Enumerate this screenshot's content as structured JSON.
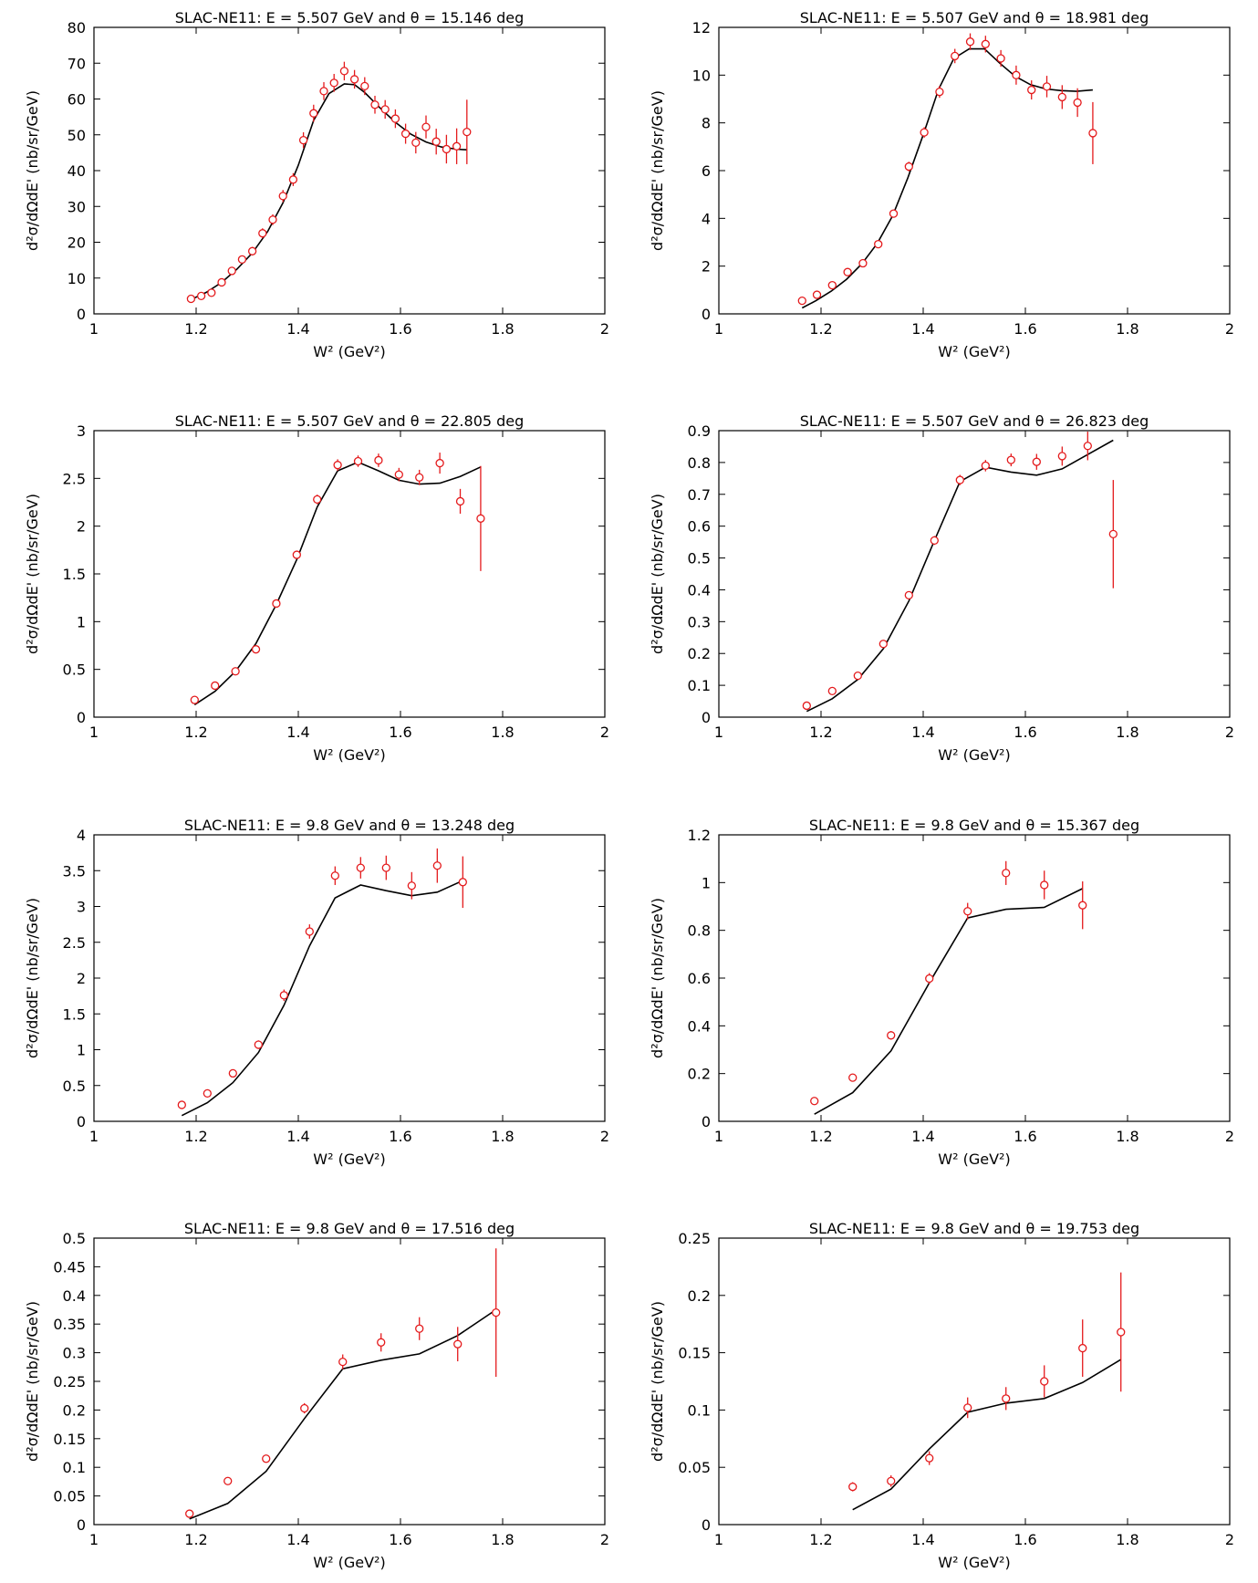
{
  "figure": {
    "ylabel_base": "d²σ/dΩdE'  (nb/sr/GeV)",
    "xlabel_base": "W²  (GeV²)"
  },
  "colors": {
    "data": "#e41a1c",
    "model": "#000000",
    "axis": "#000000"
  },
  "chart_data": [
    {
      "type": "scatter",
      "title": "SLAC-NE11: E = 5.507 GeV and θ = 15.146 deg",
      "xlabel": "W2 (GeV2)",
      "ylabel": "d2σ/dΩdE' (nb/sr/GeV)",
      "xlim": [
        1,
        2
      ],
      "ylim": [
        0,
        80
      ],
      "xticks": [
        "1",
        "1.2",
        "1.4",
        "1.6",
        "1.8",
        "2"
      ],
      "yticks": [
        "0",
        "10",
        "20",
        "30",
        "40",
        "50",
        "60",
        "70",
        "80"
      ],
      "series": [
        {
          "kind": "data",
          "x": [
            1.19,
            1.21,
            1.23,
            1.25,
            1.27,
            1.29,
            1.31,
            1.33,
            1.35,
            1.37,
            1.39,
            1.41,
            1.43,
            1.45,
            1.47,
            1.49,
            1.51,
            1.53,
            1.55,
            1.57,
            1.59,
            1.61,
            1.63,
            1.65,
            1.67,
            1.69,
            1.71,
            1.73
          ],
          "y": [
            4.2,
            5.0,
            5.9,
            8.8,
            12.0,
            15.2,
            17.5,
            22.5,
            26.3,
            32.9,
            37.5,
            48.5,
            56.0,
            62.2,
            64.5,
            67.8,
            65.5,
            63.6,
            58.4,
            57.1,
            54.5,
            50.3,
            47.8,
            52.2,
            48.1,
            46.0,
            46.8,
            50.8
          ],
          "err": [
            0.6,
            0.6,
            0.7,
            0.9,
            1.0,
            1.1,
            1.2,
            1.4,
            1.5,
            1.7,
            1.8,
            2.2,
            2.4,
            2.5,
            2.5,
            2.6,
            2.6,
            2.5,
            2.5,
            2.6,
            2.6,
            2.8,
            3.0,
            3.2,
            3.6,
            4.0,
            5.0,
            9.0
          ]
        },
        {
          "kind": "model",
          "x": [
            1.19,
            1.22,
            1.25,
            1.28,
            1.31,
            1.34,
            1.37,
            1.4,
            1.43,
            1.46,
            1.49,
            1.51,
            1.53,
            1.56,
            1.59,
            1.62,
            1.65,
            1.68,
            1.71,
            1.73
          ],
          "y": [
            4.0,
            6.0,
            8.8,
            12.5,
            17.0,
            23.0,
            31.0,
            41.5,
            54.0,
            61.5,
            64.2,
            64.0,
            61.8,
            57.5,
            53.5,
            50.2,
            48.0,
            46.6,
            46.0,
            45.8
          ]
        }
      ]
    },
    {
      "type": "scatter",
      "title": "SLAC-NE11: E = 5.507 GeV and θ = 18.981 deg",
      "xlabel": "W2 (GeV2)",
      "ylabel": "d2σ/dΩdE' (nb/sr/GeV)",
      "xlim": [
        1,
        2
      ],
      "ylim": [
        0,
        12
      ],
      "xticks": [
        "1",
        "1.2",
        "1.4",
        "1.6",
        "1.8",
        "2"
      ],
      "yticks": [
        "0",
        "2",
        "4",
        "6",
        "8",
        "10",
        "12"
      ],
      "series": [
        {
          "kind": "data",
          "x": [
            1.163,
            1.192,
            1.222,
            1.252,
            1.282,
            1.312,
            1.342,
            1.372,
            1.402,
            1.432,
            1.462,
            1.492,
            1.522,
            1.552,
            1.582,
            1.612,
            1.642,
            1.672,
            1.702,
            1.732
          ],
          "y": [
            0.55,
            0.8,
            1.2,
            1.75,
            2.12,
            2.92,
            4.2,
            6.17,
            7.6,
            9.3,
            10.8,
            11.4,
            11.3,
            10.7,
            10.0,
            9.38,
            9.52,
            9.08,
            8.85,
            7.57
          ],
          "err": [
            0.05,
            0.06,
            0.08,
            0.09,
            0.1,
            0.12,
            0.15,
            0.2,
            0.22,
            0.25,
            0.3,
            0.35,
            0.35,
            0.35,
            0.4,
            0.4,
            0.45,
            0.5,
            0.6,
            1.3
          ]
        },
        {
          "kind": "model",
          "x": [
            1.163,
            1.19,
            1.22,
            1.25,
            1.28,
            1.31,
            1.34,
            1.37,
            1.4,
            1.43,
            1.46,
            1.49,
            1.52,
            1.55,
            1.58,
            1.61,
            1.64,
            1.67,
            1.7,
            1.732
          ],
          "y": [
            0.25,
            0.55,
            0.95,
            1.45,
            2.1,
            2.95,
            4.1,
            5.7,
            7.5,
            9.4,
            10.7,
            11.1,
            11.1,
            10.5,
            9.95,
            9.6,
            9.42,
            9.35,
            9.32,
            9.38
          ]
        }
      ]
    },
    {
      "type": "scatter",
      "title": "SLAC-NE11: E = 5.507 GeV and θ = 22.805 deg",
      "xlabel": "W2 (GeV2)",
      "ylabel": "d2σ/dΩdE' (nb/sr/GeV)",
      "xlim": [
        1,
        2
      ],
      "ylim": [
        0,
        3
      ],
      "xticks": [
        "1",
        "1.2",
        "1.4",
        "1.6",
        "1.8",
        "2"
      ],
      "yticks": [
        "0",
        "0.5",
        "1",
        "1.5",
        "2",
        "2.5",
        "3"
      ],
      "series": [
        {
          "kind": "data",
          "x": [
            1.197,
            1.237,
            1.277,
            1.317,
            1.357,
            1.397,
            1.437,
            1.477,
            1.517,
            1.557,
            1.597,
            1.637,
            1.677,
            1.717,
            1.757
          ],
          "y": [
            0.18,
            0.33,
            0.48,
            0.71,
            1.19,
            1.7,
            2.28,
            2.64,
            2.68,
            2.69,
            2.54,
            2.51,
            2.66,
            2.26,
            2.08
          ],
          "err": [
            0.02,
            0.02,
            0.03,
            0.03,
            0.04,
            0.04,
            0.05,
            0.06,
            0.06,
            0.07,
            0.07,
            0.08,
            0.11,
            0.13,
            0.55
          ]
        },
        {
          "kind": "model",
          "x": [
            1.197,
            1.237,
            1.277,
            1.317,
            1.357,
            1.397,
            1.437,
            1.477,
            1.517,
            1.557,
            1.597,
            1.637,
            1.677,
            1.717,
            1.757
          ],
          "y": [
            0.13,
            0.27,
            0.48,
            0.77,
            1.18,
            1.65,
            2.2,
            2.58,
            2.67,
            2.58,
            2.48,
            2.44,
            2.45,
            2.52,
            2.62
          ]
        }
      ]
    },
    {
      "type": "scatter",
      "title": "SLAC-NE11: E = 5.507 GeV and θ = 26.823 deg",
      "xlabel": "W2 (GeV2)",
      "ylabel": "d2σ/dΩdE' (nb/sr/GeV)",
      "xlim": [
        1,
        2
      ],
      "ylim": [
        0,
        0.9
      ],
      "xticks": [
        "1",
        "1.2",
        "1.4",
        "1.6",
        "1.8",
        "2"
      ],
      "yticks": [
        "0",
        "0.1",
        "0.2",
        "0.3",
        "0.4",
        "0.5",
        "0.6",
        "0.7",
        "0.8",
        "0.9"
      ],
      "series": [
        {
          "kind": "data",
          "x": [
            1.172,
            1.222,
            1.272,
            1.322,
            1.372,
            1.422,
            1.472,
            1.522,
            1.572,
            1.622,
            1.672,
            1.722,
            1.772
          ],
          "y": [
            0.036,
            0.082,
            0.13,
            0.23,
            0.383,
            0.555,
            0.745,
            0.79,
            0.808,
            0.802,
            0.82,
            0.852,
            0.575
          ],
          "err": [
            0.005,
            0.007,
            0.008,
            0.01,
            0.012,
            0.014,
            0.016,
            0.018,
            0.02,
            0.025,
            0.03,
            0.045,
            0.17
          ]
        },
        {
          "kind": "model",
          "x": [
            1.172,
            1.222,
            1.272,
            1.322,
            1.372,
            1.422,
            1.472,
            1.522,
            1.572,
            1.622,
            1.672,
            1.722,
            1.772
          ],
          "y": [
            0.018,
            0.058,
            0.118,
            0.215,
            0.365,
            0.555,
            0.74,
            0.785,
            0.77,
            0.76,
            0.78,
            0.825,
            0.87
          ]
        }
      ]
    },
    {
      "type": "scatter",
      "title": "SLAC-NE11: E = 9.8 GeV and θ = 13.248 deg",
      "xlabel": "W2 (GeV2)",
      "ylabel": "d2σ/dΩdE' (nb/sr/GeV)",
      "xlim": [
        1,
        2
      ],
      "ylim": [
        0,
        4
      ],
      "xticks": [
        "1",
        "1.2",
        "1.4",
        "1.6",
        "1.8",
        "2"
      ],
      "yticks": [
        "0",
        "0.5",
        "1",
        "1.5",
        "2",
        "2.5",
        "3",
        "3.5",
        "4"
      ],
      "series": [
        {
          "kind": "data",
          "x": [
            1.172,
            1.222,
            1.272,
            1.322,
            1.372,
            1.422,
            1.472,
            1.522,
            1.572,
            1.622,
            1.672,
            1.722
          ],
          "y": [
            0.23,
            0.39,
            0.67,
            1.07,
            1.76,
            2.65,
            3.43,
            3.54,
            3.54,
            3.29,
            3.57,
            3.34
          ],
          "err": [
            0.03,
            0.04,
            0.05,
            0.06,
            0.08,
            0.1,
            0.13,
            0.15,
            0.17,
            0.19,
            0.24,
            0.36
          ]
        },
        {
          "kind": "model",
          "x": [
            1.172,
            1.222,
            1.272,
            1.322,
            1.372,
            1.422,
            1.472,
            1.522,
            1.572,
            1.622,
            1.672,
            1.722
          ],
          "y": [
            0.08,
            0.26,
            0.54,
            0.96,
            1.62,
            2.45,
            3.12,
            3.3,
            3.22,
            3.15,
            3.2,
            3.36
          ]
        }
      ]
    },
    {
      "type": "scatter",
      "title": "SLAC-NE11: E = 9.8 GeV and θ = 15.367 deg",
      "xlabel": "W2 (GeV2)",
      "ylabel": "d2σ/dΩdE' (nb/sr/GeV)",
      "xlim": [
        1,
        2
      ],
      "ylim": [
        0,
        1.2
      ],
      "xticks": [
        "1",
        "1.2",
        "1.4",
        "1.6",
        "1.8",
        "2"
      ],
      "yticks": [
        "0",
        "0.2",
        "0.4",
        "0.6",
        "0.8",
        "1",
        "1.2"
      ],
      "series": [
        {
          "kind": "data",
          "x": [
            1.187,
            1.262,
            1.337,
            1.412,
            1.487,
            1.562,
            1.637,
            1.712
          ],
          "y": [
            0.085,
            0.183,
            0.36,
            0.598,
            0.88,
            1.04,
            0.99,
            0.905
          ],
          "err": [
            0.01,
            0.014,
            0.018,
            0.023,
            0.035,
            0.05,
            0.06,
            0.1
          ]
        },
        {
          "kind": "model",
          "x": [
            1.187,
            1.262,
            1.337,
            1.412,
            1.487,
            1.562,
            1.637,
            1.712
          ],
          "y": [
            0.03,
            0.12,
            0.295,
            0.58,
            0.852,
            0.888,
            0.896,
            0.975
          ]
        }
      ]
    },
    {
      "type": "scatter",
      "title": "SLAC-NE11: E = 9.8 GeV and θ = 17.516 deg",
      "xlabel": "W2 (GeV2)",
      "ylabel": "d2σ/dΩdE' (nb/sr/GeV)",
      "xlim": [
        1,
        2
      ],
      "ylim": [
        0,
        0.5
      ],
      "xticks": [
        "1",
        "1.2",
        "1.4",
        "1.6",
        "1.8",
        "2"
      ],
      "yticks": [
        "0",
        "0.05",
        "0.1",
        "0.15",
        "0.2",
        "0.25",
        "0.3",
        "0.35",
        "0.4",
        "0.45",
        "0.5"
      ],
      "series": [
        {
          "kind": "data",
          "x": [
            1.187,
            1.262,
            1.337,
            1.412,
            1.487,
            1.562,
            1.637,
            1.712,
            1.787
          ],
          "y": [
            0.019,
            0.076,
            0.115,
            0.203,
            0.284,
            0.318,
            0.342,
            0.315,
            0.37
          ],
          "err": [
            0.003,
            0.005,
            0.007,
            0.009,
            0.013,
            0.016,
            0.02,
            0.03,
            0.112
          ]
        },
        {
          "kind": "model",
          "x": [
            1.187,
            1.262,
            1.337,
            1.412,
            1.487,
            1.562,
            1.637,
            1.712,
            1.787
          ],
          "y": [
            0.01,
            0.037,
            0.093,
            0.185,
            0.272,
            0.287,
            0.298,
            0.33,
            0.375
          ]
        }
      ]
    },
    {
      "type": "scatter",
      "title": "SLAC-NE11: E = 9.8 GeV and θ = 19.753 deg",
      "xlabel": "W2 (GeV2)",
      "ylabel": "d2σ/dΩdE' (nb/sr/GeV)",
      "xlim": [
        1,
        2
      ],
      "ylim": [
        0,
        0.25
      ],
      "xticks": [
        "1",
        "1.2",
        "1.4",
        "1.6",
        "1.8",
        "2"
      ],
      "yticks": [
        "0",
        "0.05",
        "0.1",
        "0.15",
        "0.2",
        "0.25"
      ],
      "series": [
        {
          "kind": "data",
          "x": [
            1.262,
            1.337,
            1.412,
            1.487,
            1.562,
            1.637,
            1.712,
            1.787
          ],
          "y": [
            0.033,
            0.038,
            0.058,
            0.102,
            0.11,
            0.125,
            0.154,
            0.168
          ],
          "err": [
            0.004,
            0.005,
            0.006,
            0.009,
            0.01,
            0.014,
            0.025,
            0.052
          ]
        },
        {
          "kind": "model",
          "x": [
            1.262,
            1.337,
            1.412,
            1.487,
            1.562,
            1.637,
            1.712,
            1.787
          ],
          "y": [
            0.013,
            0.031,
            0.066,
            0.098,
            0.106,
            0.11,
            0.124,
            0.144
          ]
        }
      ]
    }
  ]
}
